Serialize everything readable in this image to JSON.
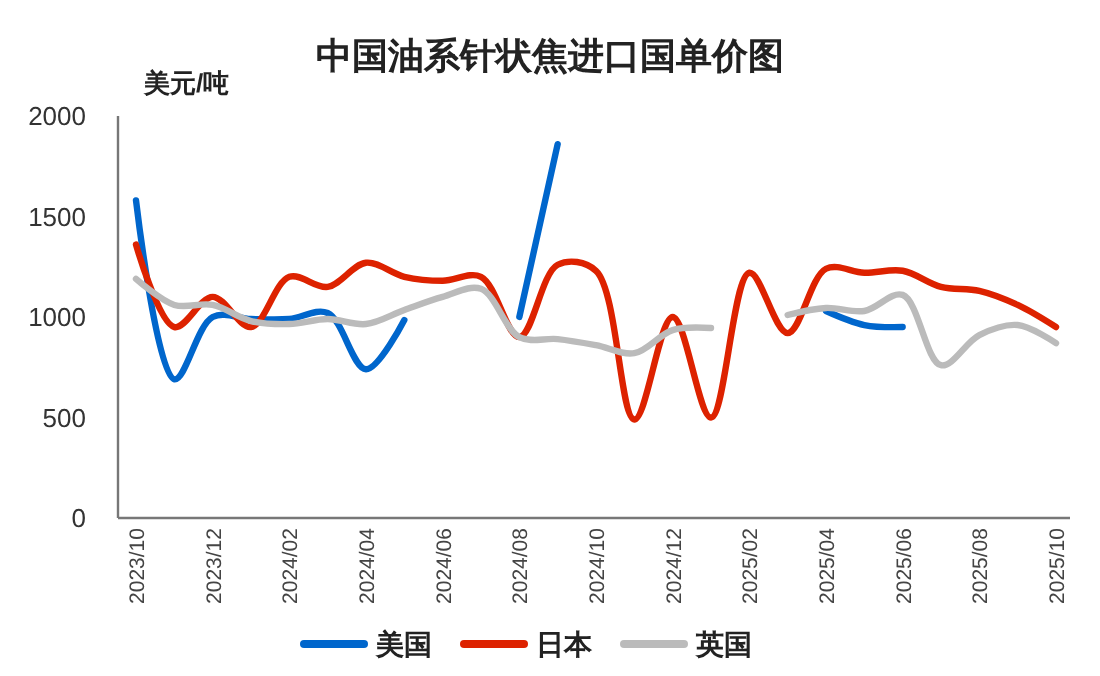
{
  "chart_data": {
    "type": "line",
    "title": "中国油系针状焦进口国单价图",
    "ylabel": "美元/吨",
    "categories": [
      "2023/10",
      null,
      "2023/12",
      null,
      "2024/02",
      null,
      "2024/04",
      null,
      "2024/06",
      null,
      "2024/08",
      null,
      "2024/10",
      null,
      "2024/12",
      null,
      "2025/02",
      null,
      "2025/04",
      null,
      "2025/06",
      null,
      "2025/08",
      null,
      "2025/10"
    ],
    "series": [
      {
        "name": "美国",
        "color": "#0066cc",
        "values": [
          1580,
          690,
          1000,
          990,
          990,
          1020,
          740,
          985,
          null,
          null,
          1000,
          1860,
          null,
          null,
          null,
          null,
          null,
          null,
          1030,
          960,
          950,
          null,
          null,
          null,
          null
        ]
      },
      {
        "name": "日本",
        "color": "#dd2200",
        "values": [
          1360,
          950,
          1100,
          950,
          1200,
          1150,
          1270,
          1200,
          1180,
          1200,
          900,
          1260,
          1230,
          490,
          1000,
          500,
          1220,
          920,
          1240,
          1220,
          1230,
          1150,
          1130,
          1060,
          950
        ]
      },
      {
        "name": "英国",
        "color": "#bbbbbb",
        "values": [
          1190,
          1060,
          1060,
          980,
          965,
          990,
          965,
          1035,
          1100,
          1140,
          900,
          890,
          860,
          820,
          935,
          945,
          null,
          1010,
          1045,
          1030,
          1110,
          760,
          910,
          960,
          870
        ]
      }
    ],
    "ylim": [
      0,
      2000
    ],
    "yticks": [
      0,
      500,
      1000,
      1500,
      2000
    ],
    "grid": false,
    "legend": "bottom",
    "marker": "none",
    "line_style": "solid"
  }
}
